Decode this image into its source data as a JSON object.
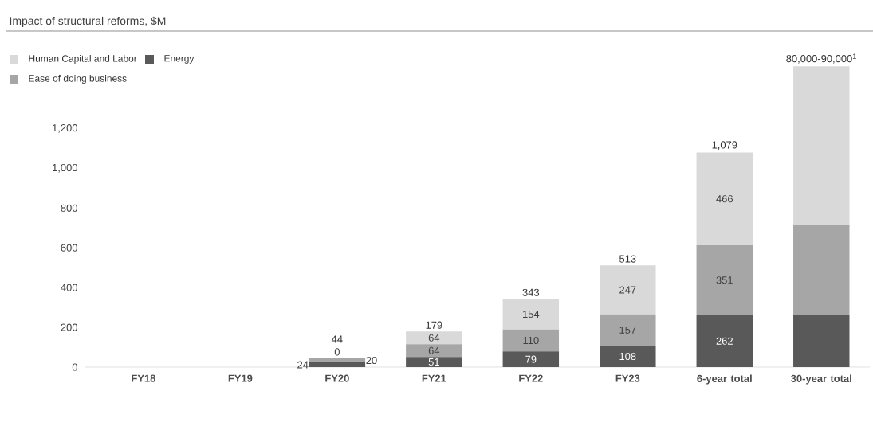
{
  "chart_data": {
    "type": "bar",
    "stacked": true,
    "title": "Impact of structural reforms, $M",
    "legend": "top left",
    "categories": [
      "FY18",
      "FY19",
      "FY20",
      "FY21",
      "FY22",
      "FY23",
      "6-year total",
      "30-year total"
    ],
    "series": [
      {
        "name": "Energy",
        "color": "#595959",
        "values": [
          null,
          null,
          24,
          51,
          79,
          108,
          262,
          262
        ],
        "value_labels": [
          null,
          null,
          "24",
          "51",
          "79",
          "108",
          "262",
          null
        ]
      },
      {
        "name": "Ease of doing business",
        "color": "#a6a6a6",
        "values": [
          null,
          null,
          20,
          64,
          110,
          157,
          351,
          453
        ],
        "value_labels": [
          null,
          null,
          "20",
          "64",
          "110",
          "157",
          "351",
          null
        ]
      },
      {
        "name": "Human Capital and Labor",
        "color": "#d9d9d9",
        "values": [
          null,
          null,
          0,
          64,
          154,
          247,
          466,
          798
        ],
        "value_labels": [
          null,
          null,
          "0",
          "64",
          "154",
          "247",
          "466",
          null
        ]
      }
    ],
    "totals": [
      null,
      null,
      "44",
      "179",
      "343",
      "513",
      "1,079",
      "80,000-90,000$^{1}$"
    ],
    "ylim": [
      0,
      1550
    ],
    "yticks": [
      0,
      200,
      400,
      600,
      800,
      {
        "value": 1000,
        "label": "1,000"
      },
      {
        "value": 1200,
        "label": "1,200"
      }
    ]
  }
}
